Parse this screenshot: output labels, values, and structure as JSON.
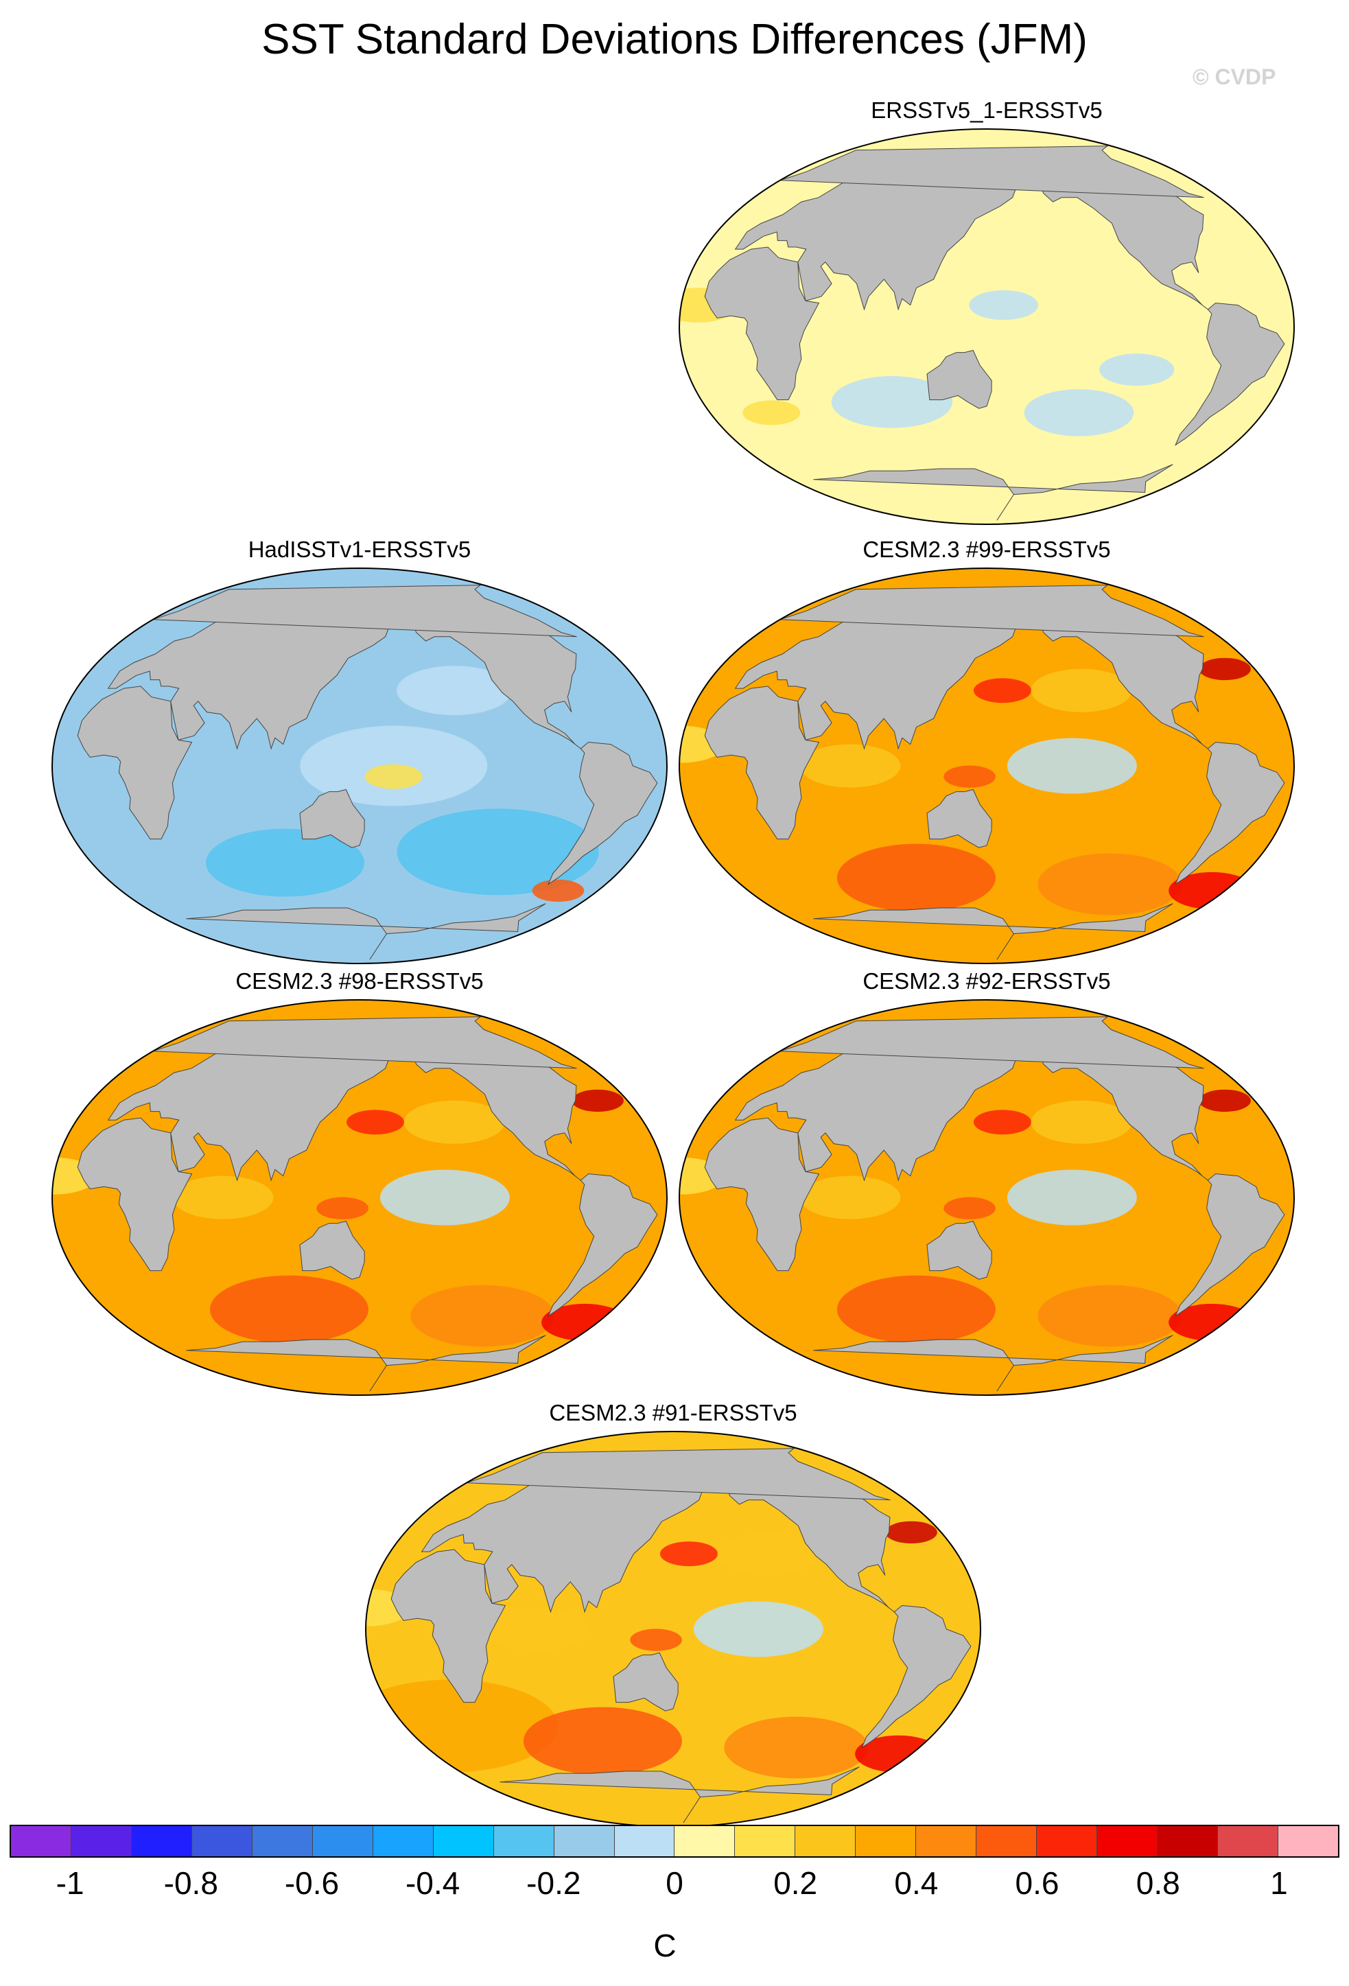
{
  "title": "SST Standard Deviations Differences (JFM)",
  "watermark": "© CVDP",
  "colors": {
    "ocean_background": "#fff6a3",
    "land": "#bdbdbd",
    "coastline": "#444444",
    "map_border": "#000000"
  },
  "panels": [
    {
      "label": "ERSSTv5_1-ERSSTv5",
      "pattern": "near-zero",
      "ocean_level": 0.02
    },
    {
      "label": "HadISSTv1-ERSSTv5",
      "pattern": "negative",
      "ocean_level": -0.2
    },
    {
      "label": "CESM2.3 #99-ERSSTv5",
      "pattern": "positive-southern-ocean",
      "ocean_level": 0.3
    },
    {
      "label": "CESM2.3 #98-ERSSTv5",
      "pattern": "positive-southern-ocean",
      "ocean_level": 0.3
    },
    {
      "label": "CESM2.3 #92-ERSSTv5",
      "pattern": "positive-southern-ocean",
      "ocean_level": 0.3
    },
    {
      "label": "CESM2.3 #91-ERSSTv5",
      "pattern": "positive-southern-ocean",
      "ocean_level": 0.25
    }
  ],
  "colorbar": {
    "colors": [
      "#8a2be2",
      "#5a22e8",
      "#1f1fff",
      "#3b57e0",
      "#3d78e0",
      "#2c8ff0",
      "#18a3ff",
      "#00c3ff",
      "#56c4f0",
      "#98cbea",
      "#bcdff5",
      "#fff8a8",
      "#fde04a",
      "#fcc51c",
      "#fca800",
      "#fd8a0e",
      "#fc5a0d",
      "#fd2508",
      "#f20000",
      "#c90000",
      "#e0474c",
      "#ffb3bf"
    ],
    "tick_labels": [
      "-1",
      "-0.8",
      "-0.6",
      "-0.4",
      "-0.2",
      "0",
      "0.2",
      "0.4",
      "0.6",
      "0.8",
      "1"
    ],
    "tick_values": [
      -1,
      -0.8,
      -0.6,
      -0.4,
      -0.2,
      0,
      0.2,
      0.4,
      0.6,
      0.8,
      1
    ],
    "range": [
      -1.1,
      1.1
    ],
    "unit": "C"
  }
}
